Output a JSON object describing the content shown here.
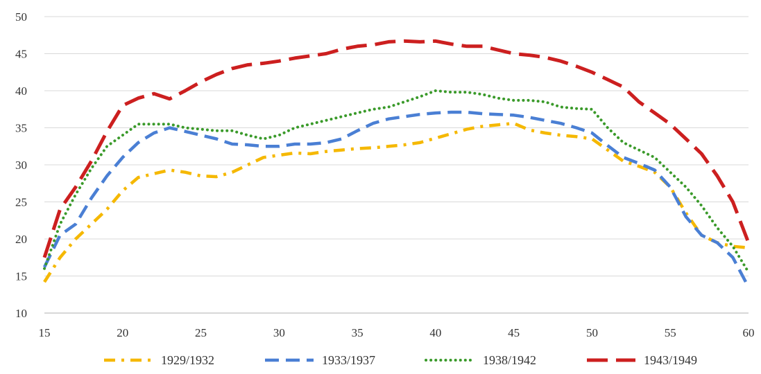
{
  "chart_data": {
    "type": "line",
    "title": "",
    "xlabel": "",
    "ylabel": "",
    "xlim": [
      15,
      60
    ],
    "ylim": [
      10,
      50
    ],
    "x_ticks": [
      15,
      20,
      25,
      30,
      35,
      40,
      45,
      50,
      55,
      60
    ],
    "y_ticks": [
      10,
      15,
      20,
      25,
      30,
      35,
      40,
      45,
      50
    ],
    "grid": "horizontal",
    "legend_position": "bottom",
    "series": [
      {
        "name": "1929/1932",
        "color": "#f5b800",
        "dash": "dashdot",
        "x": [
          15,
          16,
          17,
          18,
          19,
          20,
          21,
          22,
          23,
          24,
          25,
          26,
          27,
          28,
          29,
          30,
          31,
          32,
          33,
          34,
          35,
          36,
          37,
          38,
          39,
          40,
          41,
          42,
          43,
          44,
          45,
          46,
          47,
          48,
          49,
          50,
          51,
          52,
          53,
          54,
          55,
          56,
          57,
          58,
          59,
          60
        ],
        "y": [
          14.2,
          17.5,
          20.0,
          22.0,
          24.0,
          26.5,
          28.3,
          28.8,
          29.3,
          29.0,
          28.5,
          28.4,
          29.0,
          30.0,
          31.0,
          31.3,
          31.6,
          31.5,
          31.8,
          32.0,
          32.2,
          32.3,
          32.5,
          32.7,
          33.0,
          33.6,
          34.2,
          34.8,
          35.2,
          35.4,
          35.6,
          34.7,
          34.3,
          34.0,
          33.8,
          33.5,
          32.0,
          30.5,
          29.8,
          29.0,
          27.0,
          23.5,
          20.5,
          19.5,
          19.0,
          18.8
        ]
      },
      {
        "name": "1933/1937",
        "color": "#4a7fd4",
        "dash": "dash",
        "x": [
          15,
          16,
          17,
          18,
          19,
          20,
          21,
          22,
          23,
          24,
          25,
          26,
          27,
          28,
          29,
          30,
          31,
          32,
          33,
          34,
          35,
          36,
          37,
          38,
          39,
          40,
          41,
          42,
          43,
          44,
          45,
          46,
          47,
          48,
          49,
          50,
          51,
          52,
          53,
          54,
          55,
          56,
          57,
          58,
          59,
          60
        ],
        "y": [
          16.2,
          20.5,
          22.0,
          25.5,
          28.5,
          31.0,
          33.0,
          34.3,
          35.0,
          34.5,
          34.0,
          33.5,
          32.8,
          32.7,
          32.5,
          32.5,
          32.8,
          32.8,
          33.0,
          33.5,
          34.6,
          35.6,
          36.2,
          36.5,
          36.8,
          37.0,
          37.1,
          37.1,
          36.9,
          36.8,
          36.7,
          36.4,
          36.0,
          35.6,
          35.0,
          34.3,
          32.6,
          31.0,
          30.2,
          29.3,
          27.0,
          23.0,
          20.5,
          19.5,
          17.5,
          13.5
        ]
      },
      {
        "name": "1938/1942",
        "color": "#3a9a2a",
        "dash": "dot",
        "x": [
          15,
          16,
          17,
          18,
          19,
          20,
          21,
          22,
          23,
          24,
          25,
          26,
          27,
          28,
          29,
          30,
          31,
          32,
          33,
          34,
          35,
          36,
          37,
          38,
          39,
          40,
          41,
          42,
          43,
          44,
          45,
          46,
          47,
          48,
          49,
          50,
          51,
          52,
          53,
          54,
          55,
          56,
          57,
          58,
          59,
          60
        ],
        "y": [
          16.0,
          22.0,
          26.0,
          29.5,
          32.5,
          34.0,
          35.5,
          35.5,
          35.5,
          35.0,
          34.8,
          34.6,
          34.6,
          34.0,
          33.5,
          34.0,
          35.0,
          35.5,
          36.0,
          36.5,
          37.0,
          37.5,
          37.8,
          38.5,
          39.2,
          40.0,
          39.8,
          39.8,
          39.5,
          39.0,
          38.7,
          38.7,
          38.5,
          37.8,
          37.6,
          37.5,
          35.0,
          33.0,
          32.0,
          31.0,
          29.0,
          27.0,
          24.5,
          21.5,
          19.0,
          15.5
        ]
      },
      {
        "name": "1943/1949",
        "color": "#cc1f1f",
        "dash": "longdash",
        "x": [
          15,
          16,
          17,
          18,
          19,
          20,
          21,
          22,
          23,
          24,
          25,
          26,
          27,
          28,
          29,
          30,
          31,
          32,
          33,
          34,
          35,
          36,
          37,
          38,
          39,
          40,
          41,
          42,
          43,
          44,
          45,
          46,
          47,
          48,
          49,
          50,
          51,
          52,
          53,
          54,
          55,
          56,
          57,
          58,
          59,
          60
        ],
        "y": [
          17.5,
          24.0,
          27.0,
          30.5,
          34.5,
          38.0,
          39.0,
          39.6,
          38.9,
          40.0,
          41.2,
          42.2,
          43.0,
          43.5,
          43.7,
          44.0,
          44.4,
          44.7,
          45.0,
          45.6,
          46.0,
          46.2,
          46.6,
          46.7,
          46.6,
          46.7,
          46.3,
          46.0,
          46.0,
          45.5,
          45.0,
          44.8,
          44.5,
          44.0,
          43.3,
          42.5,
          41.5,
          40.5,
          38.5,
          37.0,
          35.5,
          33.5,
          31.5,
          28.5,
          25.0,
          19.5
        ]
      }
    ]
  }
}
